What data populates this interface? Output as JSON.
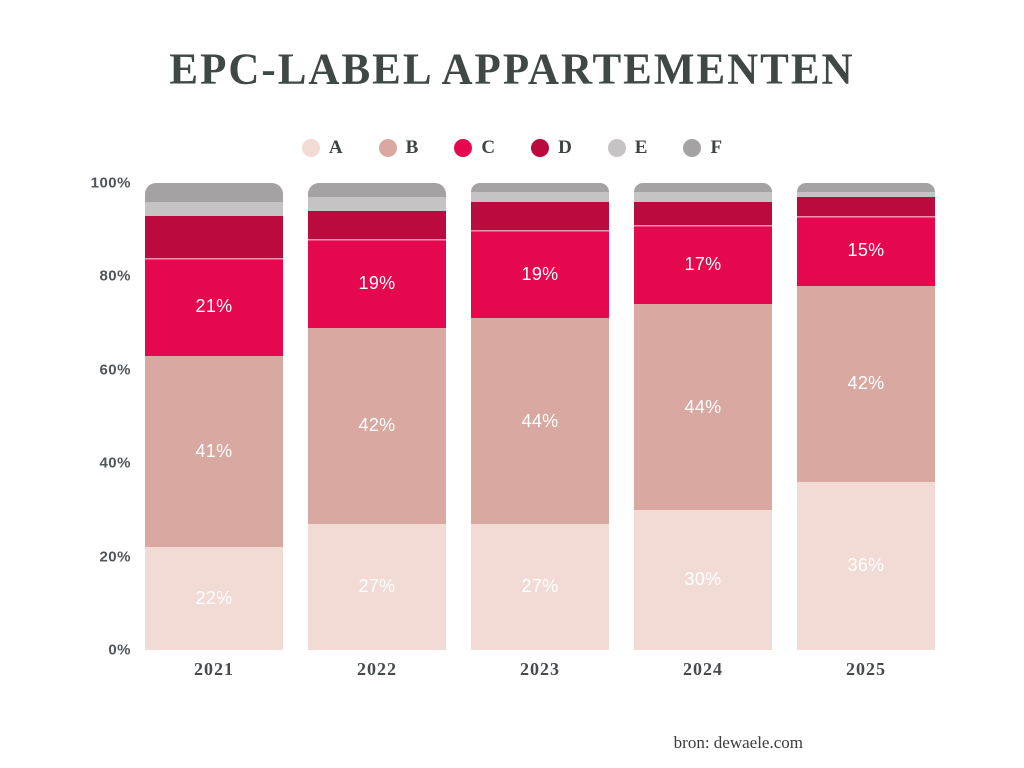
{
  "title": "EPC-LABEL APPARTEMENTEN",
  "source_text": "bron: dewaele.com",
  "colors": {
    "background": "#ffffff",
    "title_text": "#3f4845",
    "axis_text": "#50565a",
    "bar_label_text": "#ffffff"
  },
  "chart_data": {
    "type": "bar",
    "stacked": true,
    "title": "EPC-LABEL APPARTEMENTEN",
    "xlabel": "",
    "ylabel": "",
    "ylim": [
      0,
      100
    ],
    "grid": false,
    "legend_position": "top",
    "label_suffix": "%",
    "categories": [
      "2021",
      "2022",
      "2023",
      "2024",
      "2025"
    ],
    "yticks": [
      "0%",
      "20%",
      "40%",
      "60%",
      "80%",
      "100%"
    ],
    "series": [
      {
        "name": "A",
        "color": "#f2dad5",
        "values": [
          22,
          27,
          27,
          30,
          36
        ],
        "labeled": true
      },
      {
        "name": "B",
        "color": "#d9a9a1",
        "values": [
          41,
          42,
          44,
          44,
          42
        ],
        "labeled": true
      },
      {
        "name": "C",
        "color": "#e6084e",
        "values": [
          21,
          19,
          19,
          17,
          15
        ],
        "labeled": true
      },
      {
        "name": "D",
        "color": "#bb0a3e",
        "values": [
          9,
          6,
          6,
          5,
          4
        ],
        "labeled": false
      },
      {
        "name": "E",
        "color": "#c6c3c4",
        "values": [
          3,
          3,
          2,
          2,
          1
        ],
        "labeled": false
      },
      {
        "name": "F",
        "color": "#a5a2a3",
        "values": [
          4,
          3,
          2,
          2,
          2
        ],
        "labeled": false
      }
    ]
  }
}
